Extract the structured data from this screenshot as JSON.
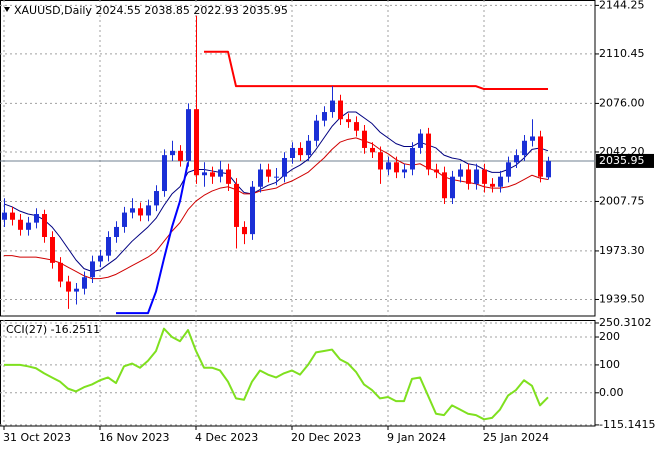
{
  "chart_data": [
    {
      "type": "candlestick",
      "title": "XAUUSD,Daily  2024.55 2038.85 2022.93 2035.95",
      "categories": [
        "31 Oct 2023",
        null,
        null,
        null,
        null,
        null,
        null,
        null,
        null,
        null,
        null,
        null,
        "16 Nov 2023",
        null,
        null,
        null,
        null,
        null,
        null,
        null,
        null,
        null,
        null,
        null,
        "4 Dec 2023",
        null,
        null,
        null,
        null,
        null,
        null,
        null,
        null,
        null,
        null,
        null,
        "20 Dec 2023",
        null,
        null,
        null,
        null,
        null,
        null,
        null,
        null,
        null,
        null,
        null,
        "9 Jan 2024",
        null,
        null,
        null,
        null,
        null,
        null,
        null,
        null,
        null,
        null,
        null,
        "25 Jan 2024",
        null,
        null,
        null,
        null,
        null,
        null,
        null,
        null
      ],
      "open": [
        1995,
        2000,
        1995,
        1988,
        1993,
        1999,
        1983,
        1965,
        1952,
        1945,
        1947,
        1955,
        1966,
        1970,
        1983,
        1990,
        2000,
        2003,
        1998,
        2005,
        2015,
        2040,
        2043,
        2036,
        2072,
        2026,
        2028,
        2025,
        2030,
        2020,
        1990,
        1985,
        2018,
        2030,
        2025,
        2025,
        2038,
        2045,
        2040,
        2050,
        2064,
        2070,
        2078,
        2065,
        2063,
        2057,
        2045,
        2042,
        2030,
        2035,
        2028,
        2030,
        2045,
        2055,
        2030,
        2028,
        2010,
        2025,
        2030,
        2020,
        2030,
        2020,
        2018,
        2025,
        2035,
        2040,
        2050,
        2053,
        2024.55
      ],
      "high": [
        2010,
        2004,
        1999,
        1997,
        2003,
        2002,
        1987,
        1969,
        1956,
        1951,
        1959,
        1970,
        1974,
        1987,
        1994,
        2004,
        2010,
        2007,
        2009,
        2019,
        2044,
        2050,
        2047,
        2076,
        2137,
        2035,
        2032,
        2036,
        2034,
        2024,
        1994,
        2022,
        2034,
        2034,
        2031,
        2042,
        2049,
        2049,
        2054,
        2068,
        2074,
        2088,
        2082,
        2069,
        2067,
        2061,
        2049,
        2046,
        2039,
        2039,
        2034,
        2049,
        2058,
        2059,
        2034,
        2032,
        2029,
        2034,
        2034,
        2034,
        2034,
        2024,
        2029,
        2039,
        2044,
        2054,
        2065,
        2057,
        2038.85
      ],
      "low": [
        1990,
        1991,
        1984,
        1984,
        1989,
        1979,
        1961,
        1948,
        1933,
        1936,
        1943,
        1951,
        1962,
        1966,
        1979,
        1986,
        1996,
        1994,
        1994,
        2001,
        2011,
        2036,
        2032,
        2032,
        2020,
        2018,
        2020,
        2021,
        2015,
        1975,
        1978,
        1981,
        2014,
        2021,
        2019,
        2021,
        2034,
        2036,
        2036,
        2046,
        2060,
        2066,
        2061,
        2059,
        2053,
        2041,
        2038,
        2020,
        2026,
        2024,
        2024,
        2026,
        2041,
        2026,
        2024,
        2006,
        2006,
        2021,
        2016,
        2016,
        2014,
        2014,
        2014,
        2021,
        2031,
        2036,
        2046,
        2021,
        2022.93
      ],
      "close": [
        2000,
        1995,
        1988,
        1993,
        1999,
        1983,
        1965,
        1952,
        1945,
        1947,
        1955,
        1966,
        1970,
        1983,
        1990,
        2000,
        2003,
        1998,
        2005,
        2015,
        2040,
        2043,
        2036,
        2072,
        2026,
        2028,
        2025,
        2030,
        2020,
        1990,
        1985,
        2018,
        2030,
        2025,
        2025,
        2038,
        2045,
        2040,
        2050,
        2064,
        2070,
        2078,
        2065,
        2063,
        2057,
        2045,
        2042,
        2030,
        2035,
        2028,
        2030,
        2045,
        2055,
        2030,
        2028,
        2010,
        2025,
        2030,
        2020,
        2030,
        2020,
        2018,
        2025,
        2035,
        2040,
        2050,
        2053,
        2025,
        2035.95
      ],
      "up_color": "#1a2fd6",
      "down_color": "#ff0000",
      "series": [
        {
          "color": "#000080",
          "values": [
            2006,
            2004,
            2001,
            1999,
            1998,
            1995,
            1990,
            1983,
            1975,
            1967,
            1961,
            1959,
            1960,
            1964,
            1968,
            1974,
            1980,
            1985,
            1990,
            1996,
            2005,
            2013,
            2018,
            2028,
            2030,
            2030,
            2029,
            2028,
            2027,
            2020,
            2014,
            2013,
            2016,
            2019,
            2021,
            2026,
            2030,
            2033,
            2037,
            2044,
            2052,
            2060,
            2066,
            2070,
            2070,
            2066,
            2062,
            2056,
            2052,
            2048,
            2046,
            2046,
            2049,
            2047,
            2045,
            2040,
            2038,
            2037,
            2034,
            2033,
            2030,
            2028,
            2028,
            2030,
            2033,
            2038,
            2044,
            2045,
            2043
          ]
        },
        {
          "color": "#d00000",
          "values": [
            1970,
            1970,
            1969,
            1969,
            1969,
            1968,
            1967,
            1965,
            1962,
            1959,
            1956,
            1954,
            1954,
            1955,
            1957,
            1960,
            1963,
            1966,
            1969,
            1973,
            1980,
            1987,
            1993,
            2002,
            2008,
            2012,
            2015,
            2017,
            2018,
            2016,
            2013,
            2013,
            2015,
            2016,
            2017,
            2020,
            2022,
            2025,
            2028,
            2033,
            2038,
            2044,
            2049,
            2051,
            2052,
            2050,
            2048,
            2044,
            2041,
            2037,
            2034,
            2033,
            2034,
            2031,
            2029,
            2025,
            2023,
            2022,
            2021,
            2020,
            2018,
            2017,
            2017,
            2018,
            2020,
            2023,
            2026,
            2024,
            2023
          ]
        },
        {
          "color": "#0000ff",
          "values": [
            null,
            null,
            null,
            null,
            null,
            null,
            null,
            null,
            null,
            null,
            null,
            null,
            null,
            null,
            1930,
            1930,
            1930,
            1930,
            1930,
            1945,
            1968,
            1990,
            2008,
            2035,
            null,
            null,
            null,
            null,
            null,
            null,
            null,
            null,
            null,
            null,
            null,
            null,
            null,
            null,
            null,
            null,
            null,
            null,
            null,
            null,
            null,
            null,
            null,
            null,
            null,
            null,
            null,
            null,
            null,
            null,
            null,
            null,
            null,
            null,
            null,
            null,
            null,
            null,
            null,
            null,
            null,
            null,
            null,
            null,
            null
          ]
        },
        {
          "color": "#ff0000",
          "values": [
            null,
            null,
            null,
            null,
            null,
            null,
            null,
            null,
            null,
            null,
            null,
            null,
            null,
            null,
            null,
            null,
            null,
            null,
            null,
            null,
            null,
            null,
            null,
            null,
            null,
            2112,
            2112,
            2112,
            2112,
            2088,
            2088,
            2088,
            2088,
            2088,
            2088,
            2088,
            2088,
            2088,
            2088,
            2088,
            2088,
            2088,
            2088,
            2088,
            2088,
            2088,
            2088,
            2088,
            2088,
            2088,
            2088,
            2088,
            2088,
            2088,
            2088,
            2088,
            2088,
            2088,
            2088,
            2088,
            2086,
            2086,
            2086,
            2086,
            2086,
            2086,
            2086,
            2086,
            2086
          ]
        }
      ],
      "ylim": [
        1928,
        2148
      ],
      "yticks": [
        2144.25,
        2110.45,
        {
          "value": 2076,
          "label": "2076.00"
        },
        {
          "value": 2042.2,
          "label": "2042.20"
        },
        2007.75,
        {
          "value": 1973.3,
          "label": "1973.30"
        },
        {
          "value": 1939.5,
          "label": "1939.50"
        }
      ],
      "grid": true
    },
    {
      "type": "line",
      "title": "CCI(27) -16.2511",
      "series": [
        {
          "color": "#7fe01f",
          "values": [
            100,
            100,
            100,
            95,
            88,
            70,
            55,
            40,
            15,
            5,
            20,
            30,
            45,
            55,
            35,
            95,
            105,
            90,
            115,
            150,
            230,
            200,
            185,
            225,
            150,
            90,
            90,
            80,
            40,
            -20,
            -25,
            40,
            80,
            65,
            55,
            70,
            80,
            65,
            100,
            145,
            150,
            155,
            120,
            105,
            75,
            30,
            10,
            -20,
            -15,
            -30,
            -30,
            50,
            55,
            -10,
            -75,
            -80,
            -45,
            -60,
            -75,
            -80,
            -95,
            -90,
            -60,
            -10,
            10,
            45,
            25,
            -45,
            -16.2511
          ]
        }
      ],
      "ylim": [
        -119,
        261
      ],
      "yticks": [
        250.3102,
        200,
        100,
        {
          "value": 0,
          "label": "0.00"
        },
        -115.1415
      ],
      "grid": true
    }
  ]
}
